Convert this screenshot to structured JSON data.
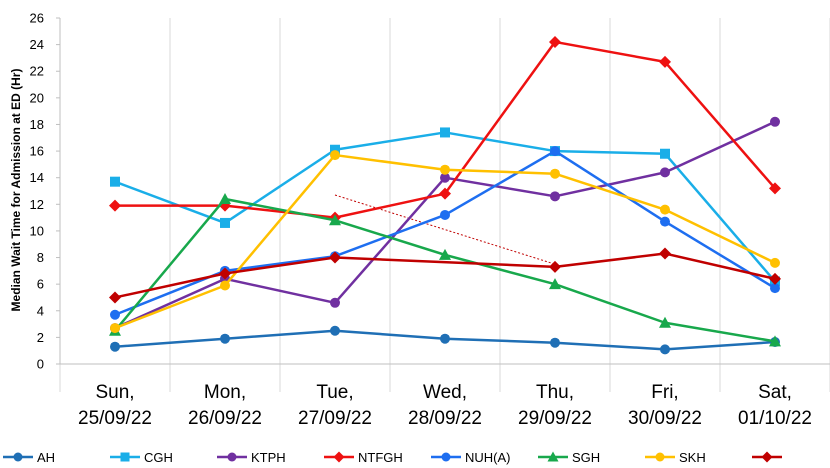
{
  "chart_data": {
    "type": "line",
    "title": "",
    "xlabel": "",
    "ylabel": "Median Wait Time for Admission at ED (Hr)",
    "ylim": [
      0,
      26
    ],
    "ytick_step": 2,
    "grid": "vertical",
    "legend_position": "bottom",
    "categories": [
      [
        "Sun,",
        "25/09/22"
      ],
      [
        "Mon,",
        "26/09/22"
      ],
      [
        "Tue,",
        "27/09/22"
      ],
      [
        "Wed,",
        "28/09/22"
      ],
      [
        "Thu,",
        "29/09/22"
      ],
      [
        "Fri,",
        "30/09/22"
      ],
      [
        "Sat,",
        "01/10/22"
      ]
    ],
    "series": [
      {
        "name": "AH",
        "color": "#1f6fb5",
        "marker": "circle",
        "values": [
          1.3,
          1.9,
          2.5,
          1.9,
          1.6,
          1.1,
          1.65
        ]
      },
      {
        "name": "CGH",
        "color": "#1aaee8",
        "marker": "square",
        "values": [
          13.7,
          10.6,
          16.1,
          17.4,
          16.0,
          15.8,
          6.2
        ]
      },
      {
        "name": "KTPH",
        "color": "#7030a0",
        "marker": "circle",
        "values": [
          2.7,
          6.4,
          4.6,
          14.0,
          12.6,
          14.4,
          18.2
        ]
      },
      {
        "name": "NTFGH",
        "color": "#ee1111",
        "marker": "diamond",
        "values": [
          11.9,
          11.9,
          11.0,
          12.8,
          24.2,
          22.7,
          13.2
        ]
      },
      {
        "name": "NUH(A)",
        "color": "#1e6ef0",
        "marker": "circle",
        "values": [
          3.7,
          7.0,
          8.1,
          11.2,
          16.0,
          10.7,
          5.7
        ]
      },
      {
        "name": "SGH",
        "color": "#18a84c",
        "marker": "triangle",
        "values": [
          2.5,
          12.4,
          10.8,
          8.2,
          6.0,
          3.1,
          1.7
        ]
      },
      {
        "name": "SKH",
        "color": "#ffc000",
        "marker": "circle",
        "values": [
          2.7,
          5.9,
          15.7,
          14.6,
          14.3,
          11.6,
          7.6
        ]
      },
      {
        "name": "",
        "color": "#c00000",
        "marker": "diamond",
        "values": [
          5.0,
          6.8,
          8.0,
          null,
          7.3,
          8.3,
          6.4
        ]
      }
    ],
    "trendline": {
      "color": "#c00000",
      "style": "dotted",
      "from": [
        2,
        12.7
      ],
      "to": [
        4,
        7.5
      ]
    }
  }
}
